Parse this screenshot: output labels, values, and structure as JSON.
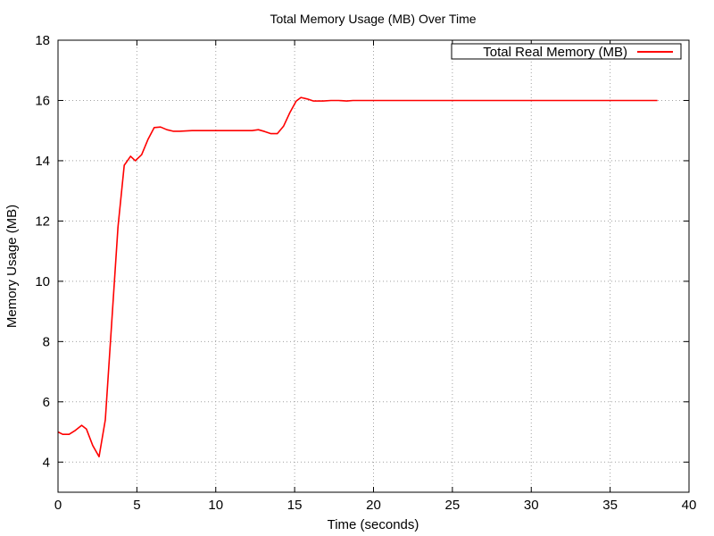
{
  "chart_data": {
    "type": "line",
    "title": "Total Memory Usage (MB) Over Time",
    "xlabel": "Time (seconds)",
    "ylabel": "Memory Usage (MB)",
    "xlim": [
      0,
      40
    ],
    "ylim": [
      3,
      18
    ],
    "x_ticks": [
      0,
      5,
      10,
      15,
      20,
      25,
      30,
      35,
      40
    ],
    "y_ticks": [
      4,
      6,
      8,
      10,
      12,
      14,
      16,
      18
    ],
    "grid": true,
    "legend_position": "top-right",
    "series": [
      {
        "name": "Total Real Memory (MB)",
        "color": "#ff0000",
        "x": [
          0,
          0.3,
          0.7,
          1.1,
          1.5,
          1.8,
          2.2,
          2.6,
          3.0,
          3.4,
          3.8,
          4.2,
          4.6,
          4.9,
          5.3,
          5.7,
          6.1,
          6.5,
          6.9,
          7.3,
          7.7,
          8.5,
          9.5,
          10.5,
          11.5,
          12.3,
          12.7,
          13.1,
          13.5,
          13.9,
          14.3,
          14.7,
          15.1,
          15.4,
          15.8,
          16.2,
          16.8,
          17.3,
          17.8,
          18.3,
          18.7,
          19.5,
          25,
          30,
          35,
          38
        ],
        "y": [
          5.0,
          4.92,
          4.92,
          5.05,
          5.22,
          5.1,
          4.55,
          4.18,
          5.4,
          8.6,
          11.8,
          13.85,
          14.15,
          14.0,
          14.2,
          14.7,
          15.1,
          15.12,
          15.03,
          14.98,
          14.98,
          15.0,
          15.0,
          15.0,
          15.0,
          15.0,
          15.03,
          14.97,
          14.9,
          14.9,
          15.15,
          15.6,
          15.98,
          16.1,
          16.05,
          15.98,
          15.98,
          16.0,
          16.0,
          15.98,
          16.0,
          16.0,
          16.0,
          16.0,
          16.0,
          16.0
        ]
      }
    ]
  }
}
